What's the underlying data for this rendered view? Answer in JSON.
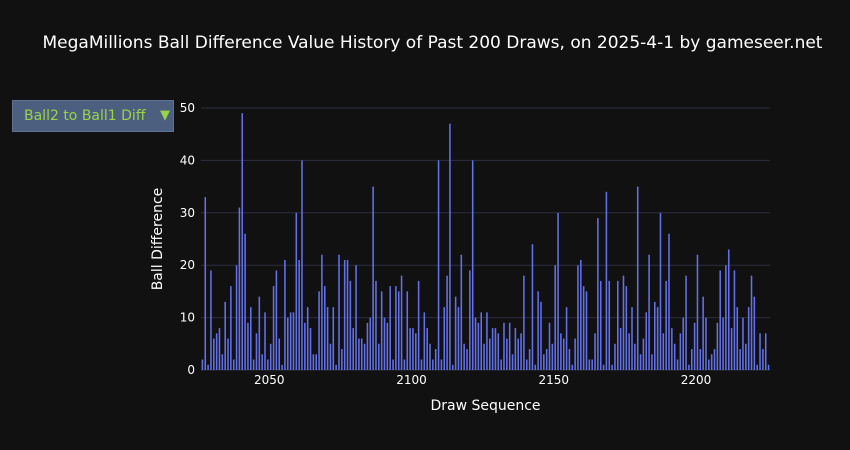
{
  "title": "MegaMillions Ball Difference Value History of Past 200 Draws, on 2025-4-1 by gameseer.net",
  "selector": {
    "selected": "Ball2 to Ball1 Diff",
    "caret": "▼"
  },
  "colors": {
    "background": "#111111",
    "bar": "#6370e8",
    "grid": "#2b2f3f",
    "text": "#ffffff",
    "selector_bg": "#4d5f7e",
    "selector_text": "#99d34a"
  },
  "chart_data": {
    "type": "bar",
    "xlabel": "Draw Sequence",
    "ylabel": "Ball Difference",
    "xlim": [
      2026,
      2226
    ],
    "ylim": [
      0,
      50
    ],
    "xticks": [
      2050,
      2100,
      2150,
      2200
    ],
    "yticks": [
      0,
      10,
      20,
      30,
      40,
      50
    ],
    "grid": "horizontal",
    "x": [
      2026,
      2027,
      2028,
      2029,
      2030,
      2031,
      2032,
      2033,
      2034,
      2035,
      2036,
      2037,
      2038,
      2039,
      2040,
      2041,
      2042,
      2043,
      2044,
      2045,
      2046,
      2047,
      2048,
      2049,
      2050,
      2051,
      2052,
      2053,
      2054,
      2055,
      2056,
      2057,
      2058,
      2059,
      2060,
      2061,
      2062,
      2063,
      2064,
      2065,
      2066,
      2067,
      2068,
      2069,
      2070,
      2071,
      2072,
      2073,
      2074,
      2075,
      2076,
      2077,
      2078,
      2079,
      2080,
      2081,
      2082,
      2083,
      2084,
      2085,
      2086,
      2087,
      2088,
      2089,
      2090,
      2091,
      2092,
      2093,
      2094,
      2095,
      2096,
      2097,
      2098,
      2099,
      2100,
      2101,
      2102,
      2103,
      2104,
      2105,
      2106,
      2107,
      2108,
      2109,
      2110,
      2111,
      2112,
      2113,
      2114,
      2115,
      2116,
      2117,
      2118,
      2119,
      2120,
      2121,
      2122,
      2123,
      2124,
      2125,
      2126,
      2127,
      2128,
      2129,
      2130,
      2131,
      2132,
      2133,
      2134,
      2135,
      2136,
      2137,
      2138,
      2139,
      2140,
      2141,
      2142,
      2143,
      2144,
      2145,
      2146,
      2147,
      2148,
      2149,
      2150,
      2151,
      2152,
      2153,
      2154,
      2155,
      2156,
      2157,
      2158,
      2159,
      2160,
      2161,
      2162,
      2163,
      2164,
      2165,
      2166,
      2167,
      2168,
      2169,
      2170,
      2171,
      2172,
      2173,
      2174,
      2175,
      2176,
      2177,
      2178,
      2179,
      2180,
      2181,
      2182,
      2183,
      2184,
      2185,
      2186,
      2187,
      2188,
      2189,
      2190,
      2191,
      2192,
      2193,
      2194,
      2195,
      2196,
      2197,
      2198,
      2199,
      2200,
      2201,
      2202,
      2203,
      2204,
      2205,
      2206,
      2207,
      2208,
      2209,
      2210,
      2211,
      2212,
      2213,
      2214,
      2215,
      2216,
      2217,
      2218,
      2219,
      2220,
      2221,
      2222,
      2223,
      2224,
      2225
    ],
    "values": [
      2,
      33,
      1,
      19,
      6,
      7,
      8,
      3,
      13,
      6,
      16,
      2,
      20,
      31,
      49,
      26,
      9,
      12,
      2,
      7,
      14,
      3,
      11,
      2,
      5,
      16,
      19,
      6,
      1,
      21,
      10,
      11,
      11,
      30,
      21,
      40,
      9,
      12,
      8,
      3,
      3,
      15,
      22,
      16,
      12,
      5,
      12,
      1,
      22,
      4,
      21,
      21,
      17,
      8,
      20,
      6,
      6,
      5,
      9,
      10,
      35,
      17,
      5,
      15,
      10,
      9,
      16,
      2,
      16,
      15,
      18,
      2,
      15,
      8,
      8,
      7,
      17,
      2,
      11,
      8,
      5,
      2,
      4,
      40,
      2,
      12,
      18,
      47,
      1,
      14,
      12,
      22,
      5,
      4,
      19,
      40,
      10,
      9,
      11,
      5,
      11,
      6,
      8,
      8,
      7,
      2,
      9,
      6,
      9,
      3,
      8,
      6,
      7,
      18,
      2,
      4,
      24,
      1,
      15,
      13,
      3,
      4,
      9,
      5,
      20,
      30,
      7,
      6,
      12,
      4,
      1,
      6,
      20,
      21,
      16,
      15,
      2,
      2,
      7,
      29,
      17,
      1,
      34,
      17,
      1,
      5,
      17,
      8,
      18,
      16,
      7,
      12,
      5,
      35,
      3,
      6,
      11,
      22,
      3,
      13,
      12,
      30,
      7,
      17,
      26,
      8,
      5,
      2,
      7,
      10,
      18,
      1,
      4,
      9,
      22,
      4,
      14,
      10,
      2,
      3,
      4,
      9,
      19,
      10,
      20,
      23,
      8,
      19,
      12,
      4,
      10,
      5,
      12,
      18,
      14,
      1,
      7,
      4,
      7,
      1
    ]
  }
}
